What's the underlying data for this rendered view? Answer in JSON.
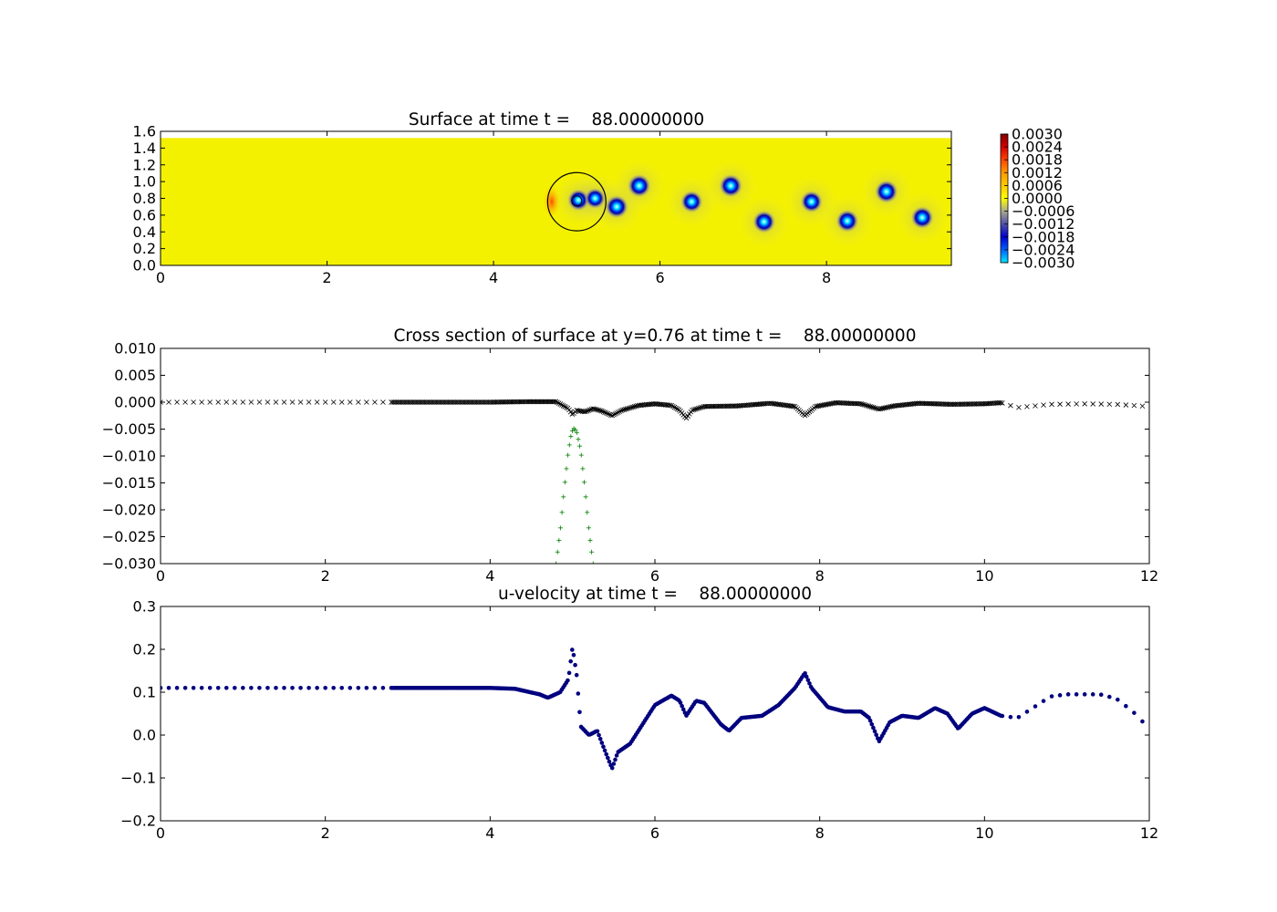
{
  "figure": {
    "background": "#ffffff"
  },
  "chart_data": [
    {
      "type": "heatmap",
      "title": "Surface at time t =    88.00000000",
      "xlim": [
        0,
        9.5
      ],
      "ylim": [
        0,
        1.6
      ],
      "xticks": [
        "0",
        "2",
        "4",
        "6",
        "8"
      ],
      "yticks": [
        "0.0",
        "0.2",
        "0.4",
        "0.6",
        "0.8",
        "1.0",
        "1.2",
        "1.4",
        "1.6"
      ],
      "domain_top_y": 1.52,
      "background_value": 0.0,
      "colorbar": {
        "ticks": [
          "0.0030",
          "0.0024",
          "0.0018",
          "0.0012",
          "0.0006",
          "0.0000",
          "−0.0006",
          "−0.0012",
          "−0.0018",
          "−0.0024",
          "−0.0030"
        ],
        "colors": [
          "#7f0000",
          "#d40000",
          "#ff4500",
          "#ff9a00",
          "#ffd400",
          "#ffff00",
          "#c8c870",
          "#6060b0",
          "#0000d0",
          "#0050ff",
          "#00e0ff"
        ]
      },
      "vortices": [
        {
          "x": 5.02,
          "y": 0.78,
          "value": -0.0025
        },
        {
          "x": 5.22,
          "y": 0.8,
          "value": -0.0022
        },
        {
          "x": 5.48,
          "y": 0.7,
          "value": -0.003
        },
        {
          "x": 5.75,
          "y": 0.95,
          "value": -0.003
        },
        {
          "x": 6.38,
          "y": 0.76,
          "value": -0.0026
        },
        {
          "x": 6.85,
          "y": 0.95,
          "value": -0.003
        },
        {
          "x": 7.25,
          "y": 0.52,
          "value": -0.0028
        },
        {
          "x": 7.82,
          "y": 0.76,
          "value": -0.0026
        },
        {
          "x": 8.25,
          "y": 0.53,
          "value": -0.0028
        },
        {
          "x": 8.72,
          "y": 0.88,
          "value": -0.003
        },
        {
          "x": 9.15,
          "y": 0.57,
          "value": -0.0028
        }
      ],
      "body_circle": {
        "x": 5.0,
        "y": 0.76,
        "radius": 0.35
      },
      "inner_circle": {
        "x": 5.0,
        "y": 0.77,
        "radius": 0.06
      }
    },
    {
      "type": "scatter",
      "title": "Cross section of surface at y=0.76 at time t =    88.00000000",
      "xlim": [
        0,
        12
      ],
      "ylim": [
        -0.03,
        0.01
      ],
      "xticks": [
        "0",
        "2",
        "4",
        "6",
        "8",
        "10",
        "12"
      ],
      "yticks": [
        "−0.030",
        "−0.025",
        "−0.020",
        "−0.015",
        "−0.010",
        "−0.005",
        "0.000",
        "0.005",
        "0.010"
      ],
      "series": [
        {
          "marker": "x",
          "color": "#000000",
          "points": [
            [
              0,
              0
            ],
            [
              0.5,
              0
            ],
            [
              1,
              0
            ],
            [
              1.5,
              0
            ],
            [
              2,
              0
            ],
            [
              2.5,
              0
            ],
            [
              2.8,
              0
            ],
            [
              3.5,
              0
            ],
            [
              4,
              0
            ],
            [
              4.5,
              0.0001
            ],
            [
              4.8,
              0.0001
            ],
            [
              4.95,
              -0.0012
            ],
            [
              5.0,
              -0.0023
            ],
            [
              5.05,
              -0.0015
            ],
            [
              5.15,
              -0.0018
            ],
            [
              5.25,
              -0.0012
            ],
            [
              5.35,
              -0.0016
            ],
            [
              5.48,
              -0.0025
            ],
            [
              5.6,
              -0.0015
            ],
            [
              5.8,
              -0.0006
            ],
            [
              6.0,
              -0.0003
            ],
            [
              6.2,
              -0.0006
            ],
            [
              6.3,
              -0.0015
            ],
            [
              6.38,
              -0.003
            ],
            [
              6.45,
              -0.0015
            ],
            [
              6.6,
              -0.0008
            ],
            [
              7.0,
              -0.0007
            ],
            [
              7.4,
              -0.0002
            ],
            [
              7.7,
              -0.0008
            ],
            [
              7.82,
              -0.0025
            ],
            [
              7.95,
              -0.0008
            ],
            [
              8.2,
              -0.0001
            ],
            [
              8.5,
              -0.0003
            ],
            [
              8.72,
              -0.0013
            ],
            [
              8.9,
              -0.0007
            ],
            [
              9.2,
              -0.0002
            ],
            [
              9.6,
              -0.0004
            ],
            [
              10.0,
              -0.0003
            ],
            [
              10.2,
              -0.0001
            ],
            [
              10.4,
              -0.001
            ],
            [
              10.8,
              -0.0004
            ],
            [
              11.2,
              -0.0003
            ],
            [
              11.6,
              -0.0004
            ],
            [
              12.0,
              -0.0008
            ]
          ]
        },
        {
          "marker": "+",
          "color": "#007f00",
          "points": [
            [
              4.8,
              -0.03
            ],
            [
              4.85,
              -0.024
            ],
            [
              4.9,
              -0.016
            ],
            [
              4.95,
              -0.009
            ],
            [
              4.99,
              -0.0055
            ],
            [
              5.02,
              -0.0048
            ],
            [
              5.05,
              -0.0055
            ],
            [
              5.1,
              -0.009
            ],
            [
              5.15,
              -0.016
            ],
            [
              5.2,
              -0.024
            ],
            [
              5.25,
              -0.03
            ]
          ]
        }
      ]
    },
    {
      "type": "scatter",
      "title": "u-velocity at time t =    88.00000000",
      "xlim": [
        0,
        12
      ],
      "ylim": [
        -0.2,
        0.3
      ],
      "xticks": [
        "0",
        "2",
        "4",
        "6",
        "8",
        "10",
        "12"
      ],
      "yticks": [
        "−0.2",
        "−0.1",
        "0.0",
        "0.1",
        "0.2",
        "0.3"
      ],
      "series": [
        {
          "marker": "o",
          "color": "#00007f",
          "points": [
            [
              0,
              0.11
            ],
            [
              1,
              0.11
            ],
            [
              2,
              0.11
            ],
            [
              2.8,
              0.11
            ],
            [
              3.5,
              0.11
            ],
            [
              4.0,
              0.11
            ],
            [
              4.3,
              0.108
            ],
            [
              4.6,
              0.095
            ],
            [
              4.7,
              0.087
            ],
            [
              4.85,
              0.1
            ],
            [
              4.95,
              0.13
            ],
            [
              5.0,
              0.205
            ],
            [
              5.05,
              0.14
            ],
            [
              5.1,
              0.02
            ],
            [
              5.2,
              0.0
            ],
            [
              5.3,
              0.01
            ],
            [
              5.4,
              -0.04
            ],
            [
              5.48,
              -0.078
            ],
            [
              5.55,
              -0.04
            ],
            [
              5.7,
              -0.02
            ],
            [
              5.8,
              0.01
            ],
            [
              6.0,
              0.07
            ],
            [
              6.2,
              0.092
            ],
            [
              6.3,
              0.08
            ],
            [
              6.38,
              0.045
            ],
            [
              6.5,
              0.08
            ],
            [
              6.6,
              0.075
            ],
            [
              6.8,
              0.025
            ],
            [
              6.9,
              0.01
            ],
            [
              7.05,
              0.04
            ],
            [
              7.3,
              0.045
            ],
            [
              7.5,
              0.07
            ],
            [
              7.7,
              0.11
            ],
            [
              7.82,
              0.145
            ],
            [
              7.9,
              0.11
            ],
            [
              8.1,
              0.065
            ],
            [
              8.3,
              0.055
            ],
            [
              8.5,
              0.055
            ],
            [
              8.6,
              0.04
            ],
            [
              8.72,
              -0.015
            ],
            [
              8.85,
              0.03
            ],
            [
              9.0,
              0.045
            ],
            [
              9.2,
              0.04
            ],
            [
              9.4,
              0.063
            ],
            [
              9.55,
              0.05
            ],
            [
              9.68,
              0.015
            ],
            [
              9.85,
              0.05
            ],
            [
              10.0,
              0.063
            ],
            [
              10.2,
              0.045
            ],
            [
              10.4,
              0.04
            ],
            [
              10.6,
              0.065
            ],
            [
              10.8,
              0.09
            ],
            [
              11.0,
              0.095
            ],
            [
              11.4,
              0.095
            ],
            [
              11.6,
              0.085
            ],
            [
              11.8,
              0.055
            ],
            [
              12.0,
              0.015
            ]
          ]
        }
      ]
    }
  ]
}
